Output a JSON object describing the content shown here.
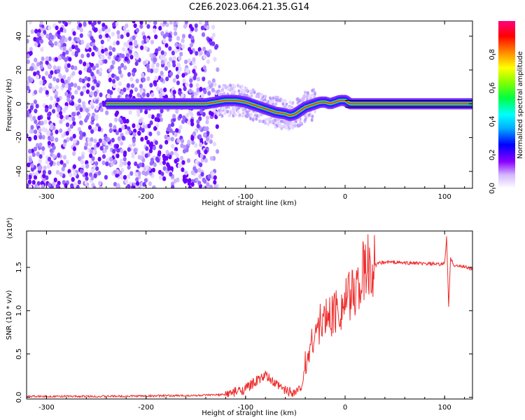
{
  "title": "C2E6.2023.064.21.35.G14",
  "chart_data": [
    {
      "type": "heatmap",
      "xlabel": "Height of straight line (km)",
      "ylabel": "Frequency (Hz)",
      "xlim": [
        -320,
        128
      ],
      "ylim": [
        -50,
        49
      ],
      "xticks": [
        -300,
        -200,
        -100,
        0,
        100
      ],
      "yticks": [
        40,
        20,
        0,
        -20,
        -40
      ],
      "colorbar": {
        "label": "Normalized spectral amplitude",
        "range": [
          0,
          1
        ],
        "ticks": [
          0.0,
          0.2,
          0.4,
          0.6,
          0.8
        ]
      },
      "trace": {
        "x": [
          -240,
          -220,
          -200,
          -180,
          -160,
          -140,
          -130,
          -120,
          -110,
          -100,
          -90,
          -80,
          -70,
          -60,
          -55,
          -50,
          -45,
          -40,
          -35,
          -30,
          -25,
          -20,
          -15,
          -10,
          -5,
          0,
          5,
          10,
          50,
          100,
          128
        ],
        "y": [
          0,
          0,
          0,
          0,
          0,
          0,
          1,
          2,
          2,
          1,
          -1,
          -3,
          -5,
          -6,
          -7,
          -6,
          -4,
          -2,
          -1,
          0,
          1,
          1,
          0,
          1,
          2,
          2,
          0,
          0,
          0,
          0,
          0
        ]
      }
    },
    {
      "type": "line",
      "xlabel": "Height of straight line (km)",
      "ylabel": "SNR (10 * v/v)",
      "y_multiplier": "(x10⁴)",
      "xlim": [
        -320,
        128
      ],
      "ylim": [
        -0.02,
        1.92
      ],
      "xticks": [
        -300,
        -200,
        -100,
        0,
        100
      ],
      "yticks": [
        0.0,
        0.5,
        1.0,
        1.5
      ],
      "color": "#ee2c2c",
      "series": [
        {
          "x": [
            -320,
            -250,
            -200,
            -150,
            -120,
            -110,
            -100,
            -90,
            -80,
            -75,
            -70,
            -60,
            -50,
            -45,
            -40,
            -35,
            -30,
            -25,
            -20,
            -15,
            -10,
            -5,
            0,
            5,
            10,
            15,
            20,
            25,
            30,
            35,
            40,
            45,
            50,
            60,
            70,
            80,
            90,
            95,
            100,
            102,
            104,
            106,
            110,
            120,
            128
          ],
          "values": [
            0.01,
            0.01,
            0.015,
            0.02,
            0.03,
            0.06,
            0.1,
            0.18,
            0.25,
            0.2,
            0.15,
            0.08,
            0.06,
            0.1,
            0.3,
            0.6,
            0.75,
            0.85,
            0.9,
            0.95,
            1.0,
            1.05,
            1.1,
            1.15,
            1.25,
            1.35,
            1.45,
            1.5,
            1.52,
            1.55,
            1.56,
            1.56,
            1.56,
            1.55,
            1.55,
            1.54,
            1.54,
            1.53,
            1.55,
            1.85,
            1.05,
            1.6,
            1.52,
            1.51,
            1.48
          ]
        }
      ]
    }
  ]
}
